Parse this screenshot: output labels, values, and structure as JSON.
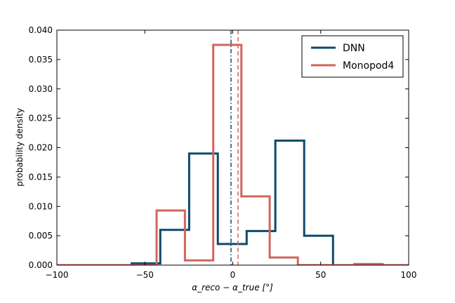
{
  "chart_data": {
    "type": "step-histogram",
    "xlabel": "α_reco − α_true  [°]",
    "ylabel": "probability density",
    "xlim": [
      -100,
      100
    ],
    "ylim": [
      0,
      0.04
    ],
    "xticks": [
      -100,
      -50,
      0,
      50,
      100
    ],
    "xtick_labels": [
      "−100",
      "−50",
      "0",
      "50",
      "100"
    ],
    "yticks": [
      0,
      0.005,
      0.01,
      0.015,
      0.02,
      0.025,
      0.03,
      0.035,
      0.04
    ],
    "ytick_labels": [
      "0.000",
      "0.005",
      "0.010",
      "0.015",
      "0.020",
      "0.025",
      "0.030",
      "0.035",
      "0.040"
    ],
    "grid": false,
    "legend_position": "top-right",
    "series": [
      {
        "name": "DNN",
        "color": "#0d4a6b",
        "bin_edges": [
          -57.5,
          -41.2,
          -24.8,
          -8.5,
          7.9,
          24.2,
          40.6,
          57.0
        ],
        "values": [
          0.0003,
          0.006,
          0.019,
          0.0036,
          0.0058,
          0.0212,
          0.005
        ],
        "vline": -1.0,
        "vline_style": "dashdot"
      },
      {
        "name": "Monopod4",
        "color": "#d1655b",
        "bin_edges": [
          -107.5,
          -91.4,
          -75.4,
          -59.3,
          -43.3,
          -27.2,
          -11.1,
          4.9,
          21.0,
          37.0,
          53.1,
          69.1,
          85.2,
          101.2
        ],
        "values": [
          0.0,
          0.0,
          0.0,
          0.0,
          0.0093,
          0.0008,
          0.0375,
          0.0117,
          0.0013,
          0.0,
          0.0,
          0.0002,
          0.0
        ],
        "vline": 3.0,
        "vline_style": "dashed"
      }
    ]
  }
}
